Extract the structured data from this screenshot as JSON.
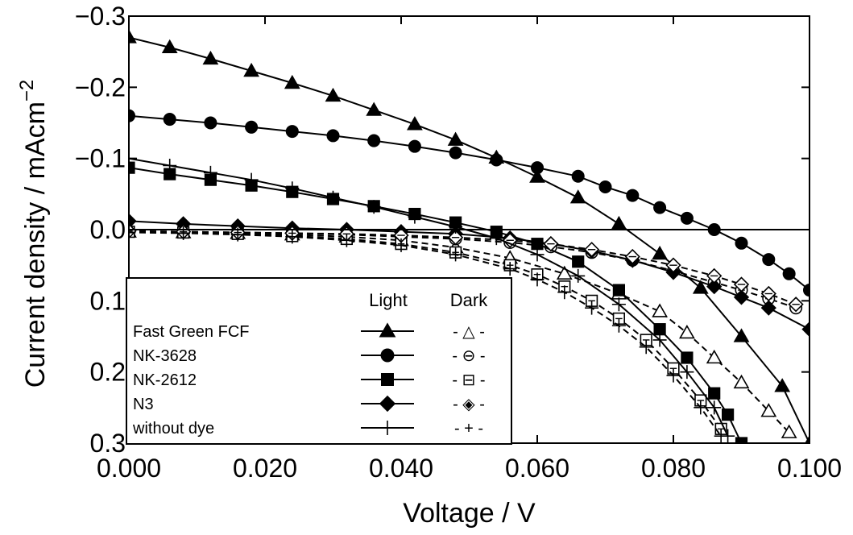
{
  "chart_data": {
    "type": "line",
    "xlabel": "Voltage / V",
    "ylabel": "Current density / mAcm",
    "ylabel_exp": "−2",
    "xlim": [
      0.0,
      0.1
    ],
    "ylim": [
      -0.3,
      0.3
    ],
    "y_inverted": true,
    "grid": false,
    "x_ticks": [
      0.0,
      0.02,
      0.04,
      0.06,
      0.08,
      0.1
    ],
    "x_tick_labels": [
      "0.000",
      "0.020",
      "0.040",
      "0.060",
      "0.080",
      "0.100"
    ],
    "y_ticks": [
      -0.3,
      -0.2,
      -0.1,
      0.0,
      0.1,
      0.2,
      0.3
    ],
    "y_tick_labels": [
      "−0.3",
      "−0.2",
      "−0.1",
      "0.0",
      "0.1",
      "0.2",
      "0.3"
    ],
    "legend": {
      "position": "bottom-left",
      "column_headers": [
        "Light",
        "Dark"
      ]
    },
    "series": [
      {
        "name": "Fast Green FCF",
        "condition": "Light",
        "marker": "triangle-filled",
        "line": "solid",
        "x": [
          0.0,
          0.006,
          0.012,
          0.018,
          0.024,
          0.03,
          0.036,
          0.042,
          0.048,
          0.054,
          0.06,
          0.066,
          0.072,
          0.078,
          0.084,
          0.09,
          0.096,
          0.1
        ],
        "y": [
          -0.27,
          -0.256,
          -0.24,
          -0.223,
          -0.206,
          -0.188,
          -0.168,
          -0.148,
          -0.126,
          -0.101,
          -0.074,
          -0.045,
          -0.008,
          0.034,
          0.082,
          0.15,
          0.22,
          0.3
        ]
      },
      {
        "name": "Fast Green FCF",
        "condition": "Dark",
        "marker": "triangle-open",
        "line": "dashed",
        "x": [
          0.0,
          0.008,
          0.016,
          0.024,
          0.032,
          0.04,
          0.048,
          0.056,
          0.064,
          0.072,
          0.078,
          0.082,
          0.086,
          0.09,
          0.094,
          0.097
        ],
        "y": [
          0.003,
          0.004,
          0.005,
          0.007,
          0.01,
          0.015,
          0.025,
          0.04,
          0.062,
          0.09,
          0.115,
          0.145,
          0.18,
          0.215,
          0.255,
          0.285
        ]
      },
      {
        "name": "NK-3628",
        "condition": "Light",
        "marker": "circle-filled",
        "line": "solid",
        "x": [
          0.0,
          0.006,
          0.012,
          0.018,
          0.024,
          0.03,
          0.036,
          0.042,
          0.048,
          0.054,
          0.06,
          0.066,
          0.07,
          0.074,
          0.078,
          0.082,
          0.086,
          0.09,
          0.094,
          0.097,
          0.1
        ],
        "y": [
          -0.16,
          -0.155,
          -0.15,
          -0.144,
          -0.138,
          -0.132,
          -0.125,
          -0.117,
          -0.108,
          -0.098,
          -0.087,
          -0.075,
          -0.06,
          -0.048,
          -0.031,
          -0.016,
          0.0,
          0.019,
          0.042,
          0.062,
          0.085
        ]
      },
      {
        "name": "NK-3628",
        "condition": "Dark",
        "marker": "circle-open",
        "line": "dashed",
        "x": [
          0.0,
          0.008,
          0.016,
          0.024,
          0.032,
          0.04,
          0.048,
          0.056,
          0.062,
          0.068,
          0.074,
          0.08,
          0.086,
          0.09,
          0.094,
          0.098
        ],
        "y": [
          0.002,
          0.003,
          0.004,
          0.005,
          0.007,
          0.01,
          0.013,
          0.018,
          0.024,
          0.032,
          0.043,
          0.058,
          0.074,
          0.085,
          0.097,
          0.11
        ]
      },
      {
        "name": "NK-2612",
        "condition": "Light",
        "marker": "square-filled",
        "line": "solid",
        "x": [
          0.0,
          0.006,
          0.012,
          0.018,
          0.024,
          0.03,
          0.036,
          0.042,
          0.048,
          0.054,
          0.06,
          0.066,
          0.072,
          0.078,
          0.082,
          0.086,
          0.088,
          0.09
        ],
        "y": [
          -0.087,
          -0.078,
          -0.07,
          -0.062,
          -0.053,
          -0.043,
          -0.033,
          -0.022,
          -0.01,
          0.003,
          0.02,
          0.045,
          0.085,
          0.14,
          0.18,
          0.23,
          0.26,
          0.3
        ]
      },
      {
        "name": "NK-2612",
        "condition": "Dark",
        "marker": "square-open",
        "line": "dashed",
        "x": [
          0.0,
          0.008,
          0.016,
          0.024,
          0.032,
          0.04,
          0.048,
          0.056,
          0.06,
          0.064,
          0.068,
          0.072,
          0.076,
          0.08,
          0.084,
          0.087
        ],
        "y": [
          0.003,
          0.004,
          0.006,
          0.009,
          0.013,
          0.02,
          0.032,
          0.05,
          0.063,
          0.08,
          0.1,
          0.125,
          0.155,
          0.195,
          0.24,
          0.28
        ]
      },
      {
        "name": "N3",
        "condition": "Light",
        "marker": "diamond-filled",
        "line": "solid",
        "x": [
          0.0,
          0.008,
          0.016,
          0.024,
          0.032,
          0.04,
          0.048,
          0.056,
          0.062,
          0.068,
          0.074,
          0.08,
          0.086,
          0.09,
          0.094,
          0.1
        ],
        "y": [
          -0.012,
          -0.008,
          -0.005,
          -0.002,
          0.0,
          0.003,
          0.006,
          0.012,
          0.02,
          0.03,
          0.043,
          0.06,
          0.08,
          0.095,
          0.11,
          0.14
        ]
      },
      {
        "name": "N3",
        "condition": "Dark",
        "marker": "diamond-open",
        "line": "dashed",
        "x": [
          0.0,
          0.008,
          0.016,
          0.024,
          0.032,
          0.04,
          0.048,
          0.056,
          0.062,
          0.068,
          0.074,
          0.08,
          0.086,
          0.09,
          0.094,
          0.098
        ],
        "y": [
          0.002,
          0.003,
          0.004,
          0.005,
          0.006,
          0.008,
          0.011,
          0.015,
          0.02,
          0.028,
          0.038,
          0.05,
          0.065,
          0.077,
          0.09,
          0.105
        ]
      },
      {
        "name": "without dye",
        "condition": "Light",
        "marker": "plus",
        "line": "solid",
        "x": [
          0.0,
          0.006,
          0.012,
          0.018,
          0.024,
          0.03,
          0.036,
          0.042,
          0.048,
          0.054,
          0.06,
          0.066,
          0.072,
          0.078,
          0.082,
          0.086,
          0.088
        ],
        "y": [
          -0.1,
          -0.09,
          -0.08,
          -0.07,
          -0.058,
          -0.045,
          -0.032,
          -0.018,
          -0.004,
          0.012,
          0.035,
          0.065,
          0.105,
          0.155,
          0.2,
          0.25,
          0.29
        ]
      },
      {
        "name": "without dye",
        "condition": "Dark",
        "marker": "plus",
        "line": "dashed",
        "x": [
          0.0,
          0.008,
          0.016,
          0.024,
          0.032,
          0.04,
          0.048,
          0.056,
          0.06,
          0.064,
          0.068,
          0.072,
          0.076,
          0.08,
          0.084,
          0.087
        ],
        "y": [
          0.004,
          0.005,
          0.007,
          0.01,
          0.015,
          0.022,
          0.035,
          0.055,
          0.07,
          0.088,
          0.11,
          0.135,
          0.165,
          0.205,
          0.25,
          0.29
        ]
      }
    ],
    "legend_entries": [
      {
        "label": "Fast Green FCF",
        "light_marker": "triangle-filled",
        "dark_symbol": "- △ -"
      },
      {
        "label": "NK-3628",
        "light_marker": "circle-filled",
        "dark_symbol": "- ⊖ -"
      },
      {
        "label": "NK-2612",
        "light_marker": "square-filled",
        "dark_symbol": "- ⊟ -"
      },
      {
        "label": "N3",
        "light_marker": "diamond-filled",
        "dark_symbol": "- ◈ -"
      },
      {
        "label": "without dye",
        "light_marker": "plus",
        "dark_symbol": "- + -"
      }
    ]
  }
}
